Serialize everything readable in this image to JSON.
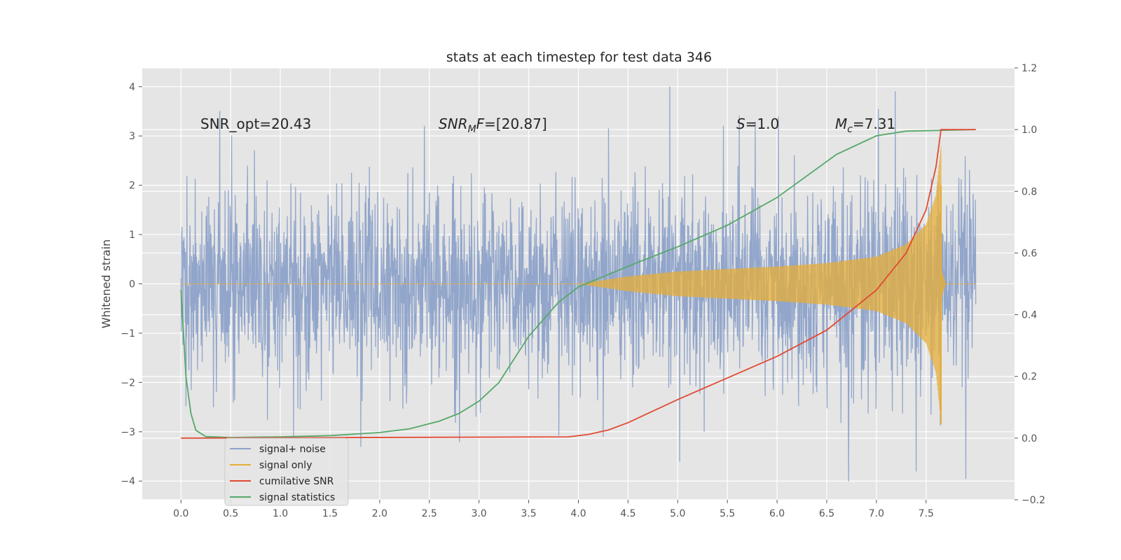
{
  "chart_data": {
    "type": "line",
    "title": "stats at each timestep for test data 346",
    "ylabel": "Whitened strain",
    "xlabel": "",
    "xlim": [
      -0.39,
      8.39
    ],
    "ylim": [
      -4.38,
      4.38
    ],
    "y2lim": [
      -0.2,
      1.2
    ],
    "grid": true,
    "legend_placement": "lower-left",
    "x_ticks": [
      "0.0",
      "0.5",
      "1.0",
      "1.5",
      "2.0",
      "2.5",
      "3.0",
      "3.5",
      "4.0",
      "4.5",
      "5.0",
      "5.5",
      "6.0",
      "6.5",
      "7.0",
      "7.5"
    ],
    "y_ticks": [
      "4",
      "3",
      "2",
      "1",
      "0",
      "−1",
      "−2",
      "−3",
      "−4"
    ],
    "y2_ticks": [
      "1.2",
      "1.0",
      "0.8",
      "0.6",
      "0.4",
      "0.2",
      "0.0",
      "−0.2"
    ],
    "annotations": [
      {
        "id": "snr-opt",
        "text": "SNR_opt=20.43"
      },
      {
        "id": "snr-mf",
        "sym": "SNR",
        "sub": "M",
        "sym2": "F",
        "rest": "=[20.87]"
      },
      {
        "id": "s",
        "sym": "S",
        "rest": "=1.0"
      },
      {
        "id": "mc",
        "sym": "M",
        "sub": "c",
        "rest": "=7.31"
      }
    ],
    "series": [
      {
        "name": "signal+ noise",
        "color": "#8da2c9",
        "kind": "noise",
        "x_range": [
          0.0,
          8.0
        ],
        "amplitude_envelope": [
          2.3,
          4.0
        ],
        "notable_peaks": [
          {
            "x": 0.39,
            "y": 3.5
          },
          {
            "x": 0.51,
            "y": 3.0
          },
          {
            "x": 0.74,
            "y": 2.7
          },
          {
            "x": 0.87,
            "y": -2.75
          },
          {
            "x": 1.81,
            "y": -3.3
          },
          {
            "x": 4.25,
            "y": -3.1
          },
          {
            "x": 4.92,
            "y": 4.0
          },
          {
            "x": 5.02,
            "y": -3.6
          },
          {
            "x": 5.46,
            "y": 3.2
          },
          {
            "x": 5.62,
            "y": 3.4
          },
          {
            "x": 6.72,
            "y": -4.0
          },
          {
            "x": 7.19,
            "y": 3.9
          },
          {
            "x": 7.4,
            "y": -3.8
          },
          {
            "x": 7.9,
            "y": -3.95
          }
        ]
      },
      {
        "name": "signal only",
        "color": "#e5ae38",
        "kind": "chirp",
        "x_range": [
          0.0,
          8.0
        ],
        "merger_x": 7.65,
        "envelope_points": [
          {
            "x": 4.0,
            "y": 0.0
          },
          {
            "x": 4.5,
            "y": 0.15
          },
          {
            "x": 5.0,
            "y": 0.25
          },
          {
            "x": 5.5,
            "y": 0.3
          },
          {
            "x": 6.0,
            "y": 0.35
          },
          {
            "x": 6.5,
            "y": 0.42
          },
          {
            "x": 7.0,
            "y": 0.55
          },
          {
            "x": 7.3,
            "y": 0.8
          },
          {
            "x": 7.5,
            "y": 1.2
          },
          {
            "x": 7.6,
            "y": 1.8
          },
          {
            "x": 7.65,
            "y": 2.8
          }
        ]
      },
      {
        "name": "cumilative SNR",
        "color": "#e24a33",
        "axis": "right",
        "points": [
          {
            "x": 0.0,
            "y": 0.0
          },
          {
            "x": 3.9,
            "y": 0.004
          },
          {
            "x": 4.1,
            "y": 0.012
          },
          {
            "x": 4.3,
            "y": 0.026
          },
          {
            "x": 4.5,
            "y": 0.05
          },
          {
            "x": 4.7,
            "y": 0.08
          },
          {
            "x": 5.0,
            "y": 0.125
          },
          {
            "x": 5.5,
            "y": 0.195
          },
          {
            "x": 6.0,
            "y": 0.265
          },
          {
            "x": 6.5,
            "y": 0.35
          },
          {
            "x": 7.0,
            "y": 0.48
          },
          {
            "x": 7.3,
            "y": 0.6
          },
          {
            "x": 7.5,
            "y": 0.74
          },
          {
            "x": 7.6,
            "y": 0.88
          },
          {
            "x": 7.65,
            "y": 1.0
          },
          {
            "x": 8.0,
            "y": 1.0
          }
        ]
      },
      {
        "name": "signal statistics",
        "color": "#348abd",
        "display_color": "#55a868",
        "axis": "right",
        "points": [
          {
            "x": 0.0,
            "y": 0.48
          },
          {
            "x": 0.05,
            "y": 0.2
          },
          {
            "x": 0.1,
            "y": 0.08
          },
          {
            "x": 0.15,
            "y": 0.025
          },
          {
            "x": 0.25,
            "y": 0.005
          },
          {
            "x": 0.5,
            "y": 0.002
          },
          {
            "x": 1.0,
            "y": 0.004
          },
          {
            "x": 1.5,
            "y": 0.008
          },
          {
            "x": 2.0,
            "y": 0.018
          },
          {
            "x": 2.3,
            "y": 0.03
          },
          {
            "x": 2.6,
            "y": 0.055
          },
          {
            "x": 2.8,
            "y": 0.08
          },
          {
            "x": 3.0,
            "y": 0.12
          },
          {
            "x": 3.2,
            "y": 0.18
          },
          {
            "x": 3.5,
            "y": 0.33
          },
          {
            "x": 3.8,
            "y": 0.44
          },
          {
            "x": 4.0,
            "y": 0.49
          },
          {
            "x": 4.3,
            "y": 0.53
          },
          {
            "x": 4.6,
            "y": 0.57
          },
          {
            "x": 5.0,
            "y": 0.62
          },
          {
            "x": 5.5,
            "y": 0.69
          },
          {
            "x": 6.0,
            "y": 0.78
          },
          {
            "x": 6.3,
            "y": 0.85
          },
          {
            "x": 6.6,
            "y": 0.92
          },
          {
            "x": 7.0,
            "y": 0.98
          },
          {
            "x": 7.3,
            "y": 0.995
          },
          {
            "x": 8.0,
            "y": 1.0
          }
        ]
      }
    ]
  },
  "legend": {
    "items": [
      {
        "label": "signal+ noise",
        "color": "#8da2c9"
      },
      {
        "label": "signal only",
        "color": "#e5ae38"
      },
      {
        "label": "cumilative SNR",
        "color": "#e24a33"
      },
      {
        "label": "signal statistics",
        "color": "#55a868"
      }
    ]
  },
  "colors": {
    "plot_background": "#e5e5e5",
    "grid": "#ffffff",
    "noise": "#8da2c9",
    "signal": "#e5ae38",
    "snr": "#e24a33",
    "stats": "#55a868"
  }
}
